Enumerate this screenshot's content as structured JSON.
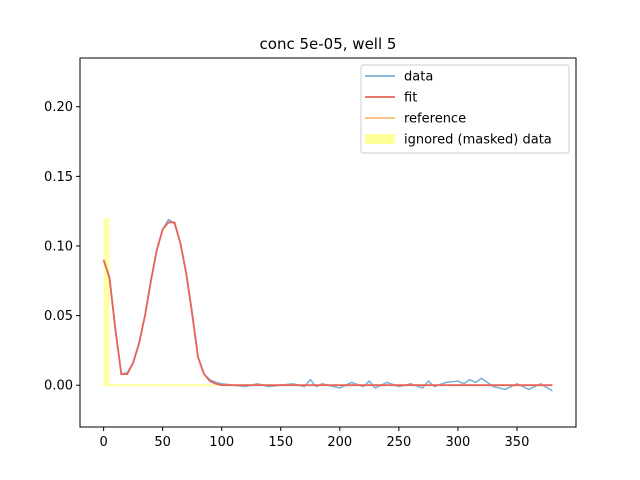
{
  "chart_data": {
    "type": "line",
    "title": "conc 5e-05, well 5",
    "xlabel": "",
    "ylabel": "",
    "xlim": [
      -20,
      400
    ],
    "ylim": [
      -0.03,
      0.235
    ],
    "xticks": [
      0,
      50,
      100,
      150,
      200,
      250,
      300,
      350
    ],
    "yticks": [
      0.0,
      0.05,
      0.1,
      0.15,
      0.2
    ],
    "xtick_labels": [
      "0",
      "50",
      "100",
      "150",
      "200",
      "250",
      "300",
      "350"
    ],
    "ytick_labels": [
      "0.00",
      "0.05",
      "0.10",
      "0.15",
      "0.20"
    ],
    "grid": false,
    "legend_position": "upper right",
    "colors": {
      "data": "#7fb3d5",
      "fit": "#e8645a",
      "reference": "#ffbb78",
      "masked": "#ffff99"
    },
    "masked_region": {
      "x_start": 0,
      "x_end": 5,
      "y_top": 0.12,
      "baseline_x_end": 95
    },
    "series": [
      {
        "name": "data",
        "x": [
          0,
          5,
          10,
          15,
          20,
          25,
          30,
          35,
          40,
          45,
          50,
          55,
          60,
          65,
          70,
          75,
          80,
          85,
          90,
          95,
          100,
          110,
          120,
          130,
          140,
          150,
          160,
          170,
          175,
          180,
          185,
          190,
          200,
          210,
          220,
          225,
          230,
          240,
          250,
          260,
          270,
          275,
          280,
          290,
          300,
          305,
          310,
          315,
          320,
          330,
          340,
          350,
          360,
          370,
          380
        ],
        "y": [
          0.09,
          0.078,
          0.04,
          0.008,
          0.009,
          0.016,
          0.03,
          0.05,
          0.075,
          0.097,
          0.112,
          0.119,
          0.116,
          0.102,
          0.08,
          0.052,
          0.02,
          0.008,
          0.004,
          0.002,
          0.001,
          0.0,
          -0.001,
          0.001,
          -0.001,
          0.0,
          0.001,
          -0.001,
          0.004,
          -0.001,
          0.001,
          0.0,
          -0.002,
          0.002,
          -0.001,
          0.003,
          -0.002,
          0.002,
          -0.001,
          0.001,
          -0.002,
          0.003,
          -0.001,
          0.002,
          0.003,
          0.001,
          0.004,
          0.002,
          0.005,
          -0.001,
          -0.003,
          0.001,
          -0.003,
          0.001,
          -0.004
        ]
      },
      {
        "name": "fit",
        "x": [
          0,
          5,
          10,
          15,
          20,
          25,
          30,
          35,
          40,
          45,
          50,
          55,
          60,
          65,
          70,
          75,
          80,
          85,
          90,
          95,
          100,
          150,
          200,
          250,
          300,
          350,
          380
        ],
        "y": [
          0.09,
          0.077,
          0.04,
          0.008,
          0.008,
          0.016,
          0.03,
          0.05,
          0.075,
          0.097,
          0.112,
          0.117,
          0.117,
          0.102,
          0.08,
          0.051,
          0.02,
          0.008,
          0.003,
          0.001,
          0.0,
          0.0,
          0.0,
          0.0,
          0.0,
          0.0,
          0.0
        ]
      },
      {
        "name": "reference",
        "x": [
          0,
          5,
          10,
          15,
          20,
          25,
          30,
          35,
          40,
          45,
          50,
          55,
          60,
          65,
          70,
          75,
          80,
          85,
          90,
          95,
          100,
          150,
          200,
          250,
          300,
          350,
          380
        ],
        "y": [
          0.09,
          0.077,
          0.04,
          0.008,
          0.008,
          0.016,
          0.03,
          0.05,
          0.075,
          0.097,
          0.112,
          0.117,
          0.117,
          0.102,
          0.08,
          0.051,
          0.02,
          0.008,
          0.003,
          0.001,
          0.0,
          0.0,
          0.0,
          0.0,
          0.0,
          0.0,
          0.0
        ]
      }
    ],
    "legend": [
      {
        "label": "data",
        "kind": "line",
        "color_key": "data"
      },
      {
        "label": "fit",
        "kind": "line",
        "color_key": "fit"
      },
      {
        "label": "reference",
        "kind": "line",
        "color_key": "reference"
      },
      {
        "label": "ignored (masked) data",
        "kind": "patch",
        "color_key": "masked"
      }
    ]
  }
}
